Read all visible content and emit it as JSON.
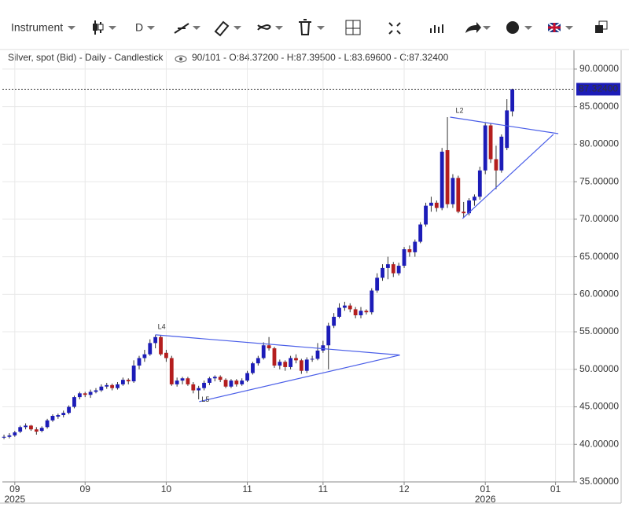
{
  "toolbar": {
    "instrument": "Instrument",
    "period": "D"
  },
  "chart_data": {
    "type": "candlestick",
    "title": "Silver, spot (Bid) - Daily - Candlestick",
    "subtitle": "90/101 - O:84.37200 - H:87.39500 - L:83.69600 - C:87.32400",
    "up_color": "#1c1cb8",
    "down_color": "#b41e1e",
    "wick_color": "#333333",
    "grid": true,
    "ohlc": [
      [
        40.9,
        41.3,
        40.7,
        41.0
      ],
      [
        41.0,
        41.5,
        40.8,
        41.2
      ],
      [
        41.2,
        41.8,
        41.0,
        41.6
      ],
      [
        41.7,
        42.5,
        41.5,
        42.3
      ],
      [
        42.3,
        42.8,
        42.0,
        42.5
      ],
      [
        42.5,
        42.6,
        41.8,
        42.0
      ],
      [
        42.0,
        42.3,
        41.3,
        41.7
      ],
      [
        41.8,
        42.4,
        41.6,
        42.2
      ],
      [
        42.3,
        43.4,
        42.1,
        43.2
      ],
      [
        43.2,
        44.0,
        43.0,
        43.8
      ],
      [
        43.7,
        44.1,
        43.4,
        43.9
      ],
      [
        43.9,
        44.5,
        43.6,
        44.2
      ],
      [
        44.2,
        45.2,
        44.0,
        45.0
      ],
      [
        45.0,
        46.5,
        44.8,
        46.3
      ],
      [
        46.3,
        47.0,
        46.0,
        46.8
      ],
      [
        46.8,
        47.0,
        46.3,
        46.6
      ],
      [
        46.6,
        47.3,
        46.2,
        47.0
      ],
      [
        47.0,
        47.5,
        46.8,
        47.2
      ],
      [
        47.2,
        48.0,
        47.0,
        47.7
      ],
      [
        47.7,
        48.2,
        47.4,
        47.9
      ],
      [
        47.9,
        48.1,
        47.2,
        47.5
      ],
      [
        47.5,
        48.3,
        47.3,
        48.0
      ],
      [
        48.0,
        48.9,
        47.8,
        48.6
      ],
      [
        48.6,
        48.8,
        48.0,
        48.4
      ],
      [
        48.4,
        51.2,
        48.2,
        50.5
      ],
      [
        50.5,
        51.8,
        50.0,
        51.5
      ],
      [
        51.5,
        52.6,
        51.0,
        52.0
      ],
      [
        52.0,
        54.0,
        51.8,
        53.5
      ],
      [
        53.5,
        54.6,
        52.8,
        54.3
      ],
      [
        54.3,
        54.5,
        51.8,
        52.0
      ],
      [
        52.2,
        52.6,
        51.0,
        51.5
      ],
      [
        51.5,
        51.8,
        47.8,
        48.0
      ],
      [
        48.0,
        48.9,
        47.7,
        48.5
      ],
      [
        48.5,
        49.0,
        48.0,
        48.8
      ],
      [
        48.8,
        49.0,
        47.8,
        48.0
      ],
      [
        48.0,
        48.3,
        46.8,
        47.2
      ],
      [
        47.2,
        47.8,
        46.0,
        47.5
      ],
      [
        47.5,
        48.5,
        47.2,
        48.2
      ],
      [
        48.2,
        49.0,
        47.9,
        48.8
      ],
      [
        48.8,
        49.2,
        48.4,
        49.0
      ],
      [
        49.0,
        49.2,
        48.3,
        48.6
      ],
      [
        48.6,
        48.8,
        47.5,
        47.7
      ],
      [
        47.7,
        48.7,
        47.5,
        48.5
      ],
      [
        48.5,
        48.7,
        47.7,
        48.0
      ],
      [
        48.0,
        48.8,
        47.8,
        48.5
      ],
      [
        48.5,
        49.8,
        48.3,
        49.5
      ],
      [
        49.5,
        51.0,
        49.3,
        50.8
      ],
      [
        50.8,
        51.8,
        50.5,
        51.5
      ],
      [
        51.5,
        53.6,
        51.3,
        53.2
      ],
      [
        53.2,
        54.3,
        52.5,
        52.8
      ],
      [
        52.8,
        53.0,
        50.2,
        50.5
      ],
      [
        50.5,
        51.3,
        50.0,
        51.0
      ],
      [
        51.0,
        51.2,
        49.8,
        50.3
      ],
      [
        50.3,
        51.8,
        50.0,
        51.5
      ],
      [
        51.5,
        52.0,
        50.8,
        51.2
      ],
      [
        51.2,
        51.4,
        49.4,
        49.8
      ],
      [
        49.8,
        51.6,
        49.5,
        51.3
      ],
      [
        51.3,
        51.8,
        51.0,
        51.4
      ],
      [
        51.4,
        53.5,
        51.2,
        52.5
      ],
      [
        52.5,
        53.8,
        52.2,
        53.2
      ],
      [
        53.2,
        56.2,
        50.0,
        55.8
      ],
      [
        55.8,
        57.5,
        55.5,
        57.0
      ],
      [
        57.0,
        58.8,
        56.8,
        58.2
      ],
      [
        58.2,
        59.0,
        57.8,
        58.5
      ],
      [
        58.5,
        58.8,
        57.6,
        58.0
      ],
      [
        58.0,
        58.3,
        56.8,
        57.2
      ],
      [
        57.2,
        58.3,
        56.8,
        57.8
      ],
      [
        57.8,
        58.0,
        57.3,
        57.6
      ],
      [
        57.6,
        60.8,
        57.3,
        60.5
      ],
      [
        60.5,
        62.8,
        60.2,
        62.2
      ],
      [
        62.2,
        64.0,
        61.8,
        63.5
      ],
      [
        63.5,
        65.0,
        62.0,
        64.0
      ],
      [
        64.0,
        64.3,
        62.3,
        62.8
      ],
      [
        62.8,
        64.2,
        62.5,
        63.8
      ],
      [
        63.8,
        66.3,
        63.5,
        66.0
      ],
      [
        66.0,
        66.5,
        65.0,
        65.6
      ],
      [
        65.6,
        67.3,
        65.0,
        67.0
      ],
      [
        67.0,
        69.6,
        66.8,
        69.3
      ],
      [
        69.3,
        72.2,
        69.0,
        71.8
      ],
      [
        71.8,
        73.0,
        71.0,
        72.2
      ],
      [
        72.2,
        72.5,
        71.0,
        71.5
      ],
      [
        71.5,
        79.5,
        71.2,
        79.0
      ],
      [
        79.2,
        83.6,
        71.5,
        72.0
      ],
      [
        72.0,
        76.0,
        71.5,
        75.5
      ],
      [
        75.5,
        75.8,
        70.8,
        71.0
      ],
      [
        71.0,
        72.3,
        70.2,
        70.8
      ],
      [
        70.8,
        72.8,
        70.5,
        72.5
      ],
      [
        72.5,
        73.3,
        71.8,
        73.0
      ],
      [
        73.0,
        77.0,
        72.6,
        76.5
      ],
      [
        76.5,
        82.8,
        76.0,
        82.5
      ],
      [
        82.5,
        82.8,
        77.5,
        78.0
      ],
      [
        78.0,
        79.8,
        74.0,
        76.5
      ],
      [
        76.5,
        81.3,
        76.2,
        81.0
      ],
      [
        79.5,
        86.0,
        79.2,
        84.5
      ],
      [
        84.372,
        87.395,
        83.696,
        87.324
      ]
    ],
    "xlim": [
      -0.3,
      105.4
    ],
    "ylim": [
      35,
      92.4
    ],
    "xticks": [
      {
        "value": 2,
        "label": "09"
      },
      {
        "value": 15,
        "label": "09"
      },
      {
        "value": 30,
        "label": "10"
      },
      {
        "value": 45,
        "label": "11"
      },
      {
        "value": 59,
        "label": "11"
      },
      {
        "value": 74,
        "label": "12"
      },
      {
        "value": 89,
        "label": "01"
      },
      {
        "value": 102,
        "label": "01"
      }
    ],
    "year_labels": [
      {
        "value": 2,
        "label": "2025"
      },
      {
        "value": 89,
        "label": "2026"
      }
    ],
    "yticks": [
      {
        "value": 35,
        "label": "35.00000"
      },
      {
        "value": 40,
        "label": "40.00000"
      },
      {
        "value": 45,
        "label": "45.00000"
      },
      {
        "value": 50,
        "label": "50.00000"
      },
      {
        "value": 55,
        "label": "55.00000"
      },
      {
        "value": 60,
        "label": "60.00000"
      },
      {
        "value": 65,
        "label": "65.00000"
      },
      {
        "value": 70,
        "label": "70.00000"
      },
      {
        "value": 75,
        "label": "75.00000"
      },
      {
        "value": 80,
        "label": "80.00000"
      },
      {
        "value": 85,
        "label": "85.00000"
      },
      {
        "value": 90,
        "label": "90.00000"
      }
    ],
    "last_price": {
      "value": 87.324,
      "label": "87.32400"
    },
    "drawing_color": "#4a5ee8",
    "drawings": [
      {
        "label": "L4",
        "lines": [
          [
            [
              28,
              54.6
            ],
            [
              73.2,
              51.9
            ]
          ],
          [
            [
              36.1,
              45.7
            ],
            [
              73.2,
              51.9
            ]
          ]
        ]
      },
      {
        "label": "L5",
        "lines": []
      },
      {
        "label": "L2",
        "lines": [
          [
            [
              82.5,
              83.6
            ],
            [
              102.5,
              81.4
            ]
          ],
          [
            [
              84.8,
              70.1
            ],
            [
              101.6,
              81.3
            ]
          ]
        ]
      }
    ]
  }
}
